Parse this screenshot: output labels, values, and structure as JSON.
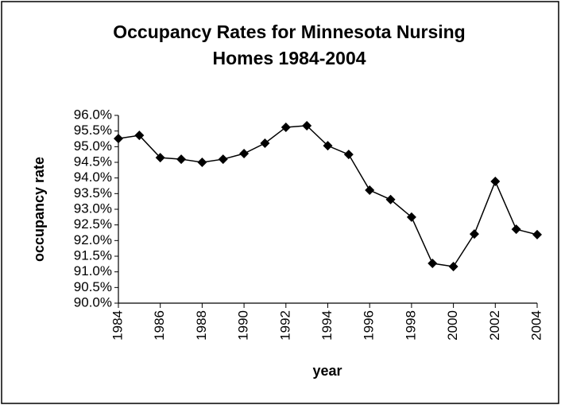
{
  "chart_data": {
    "type": "line",
    "title": [
      "Occupancy Rates for Minnesota Nursing",
      "Homes 1984-2004"
    ],
    "xlabel": "year",
    "ylabel": "occupancy rate",
    "x": [
      1984,
      1985,
      1986,
      1987,
      1988,
      1989,
      1990,
      1991,
      1992,
      1993,
      1994,
      1995,
      1996,
      1997,
      1998,
      1999,
      2000,
      2001,
      2002,
      2003,
      2004
    ],
    "series": [
      {
        "name": "occupancy rate",
        "color": "#000000",
        "values": [
          95.26,
          95.36,
          94.65,
          94.6,
          94.5,
          94.6,
          94.78,
          95.11,
          95.62,
          95.67,
          95.03,
          94.75,
          93.61,
          93.31,
          92.75,
          91.27,
          91.17,
          92.21,
          93.89,
          92.36,
          92.19
        ]
      }
    ],
    "xlim": [
      1984,
      2004
    ],
    "xticks": [
      1984,
      1986,
      1988,
      1990,
      1992,
      1994,
      1996,
      1998,
      2000,
      2002,
      2004
    ],
    "ylim": [
      90,
      96
    ],
    "yticks": [
      {
        "value": 90.0,
        "label": "90.0%"
      },
      {
        "value": 90.5,
        "label": "90.5%"
      },
      {
        "value": 91.0,
        "label": "91.0%"
      },
      {
        "value": 91.5,
        "label": "91.5%"
      },
      {
        "value": 92.0,
        "label": "92.0%"
      },
      {
        "value": 92.5,
        "label": "92.5%"
      },
      {
        "value": 93.0,
        "label": "93.0%"
      },
      {
        "value": 93.5,
        "label": "93.5%"
      },
      {
        "value": 94.0,
        "label": "94.0%"
      },
      {
        "value": 94.5,
        "label": "94.5%"
      },
      {
        "value": 95.0,
        "label": "95.0%"
      },
      {
        "value": 95.5,
        "label": "95.5%"
      },
      {
        "value": 96.0,
        "label": "96.0%"
      }
    ],
    "grid": false
  }
}
